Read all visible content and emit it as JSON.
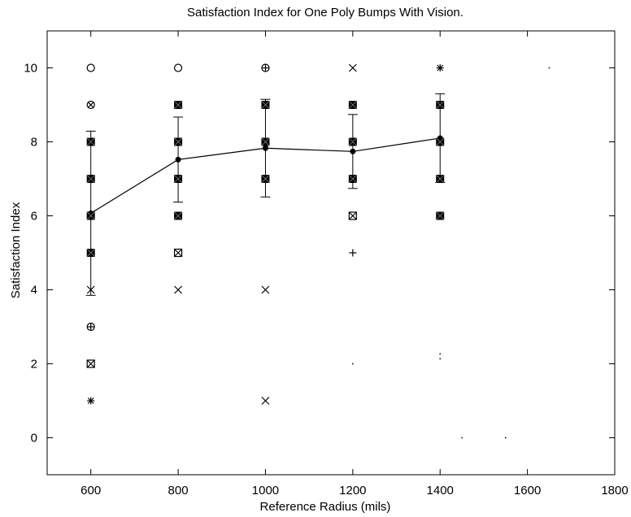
{
  "chart_data": {
    "type": "scatter",
    "title": "Satisfaction Index for One Poly Bumps With Vision.",
    "xlabel": "Reference Radius (mils)",
    "ylabel": "Satisfaction Index",
    "xlim": [
      500,
      1800
    ],
    "ylim": [
      -1,
      11
    ],
    "xticks": [
      600,
      800,
      1000,
      1200,
      1400,
      1600,
      1800
    ],
    "yticks": [
      0,
      2,
      4,
      6,
      8,
      10
    ],
    "grid": false,
    "series": [
      {
        "type": "scatter",
        "points": [
          {
            "x": 600,
            "y": 10,
            "marker": "circle"
          },
          {
            "x": 600,
            "y": 9,
            "marker": "circle-x"
          },
          {
            "x": 600,
            "y": 8,
            "marker": "filled-square"
          },
          {
            "x": 600,
            "y": 7,
            "marker": "filled-square"
          },
          {
            "x": 600,
            "y": 6,
            "marker": "filled-square"
          },
          {
            "x": 600,
            "y": 5,
            "marker": "filled-square"
          },
          {
            "x": 600,
            "y": 4,
            "marker": "x"
          },
          {
            "x": 600,
            "y": 3,
            "marker": "circle-plus"
          },
          {
            "x": 600,
            "y": 2,
            "marker": "square-x"
          },
          {
            "x": 600,
            "y": 1,
            "marker": "asterisk"
          },
          {
            "x": 800,
            "y": 10,
            "marker": "circle"
          },
          {
            "x": 800,
            "y": 9,
            "marker": "filled-square"
          },
          {
            "x": 800,
            "y": 8,
            "marker": "filled-square"
          },
          {
            "x": 800,
            "y": 7,
            "marker": "filled-square"
          },
          {
            "x": 800,
            "y": 6,
            "marker": "filled-square"
          },
          {
            "x": 800,
            "y": 5,
            "marker": "square-x"
          },
          {
            "x": 800,
            "y": 4,
            "marker": "x"
          },
          {
            "x": 1000,
            "y": 10,
            "marker": "circle-plus"
          },
          {
            "x": 1000,
            "y": 9,
            "marker": "filled-square"
          },
          {
            "x": 1000,
            "y": 8,
            "marker": "filled-square"
          },
          {
            "x": 1000,
            "y": 7,
            "marker": "filled-square"
          },
          {
            "x": 1000,
            "y": 4,
            "marker": "x"
          },
          {
            "x": 1000,
            "y": 1,
            "marker": "x"
          },
          {
            "x": 1200,
            "y": 10,
            "marker": "x"
          },
          {
            "x": 1200,
            "y": 9,
            "marker": "filled-square"
          },
          {
            "x": 1200,
            "y": 8,
            "marker": "filled-square"
          },
          {
            "x": 1200,
            "y": 7,
            "marker": "filled-square"
          },
          {
            "x": 1200,
            "y": 6,
            "marker": "square-x"
          },
          {
            "x": 1200,
            "y": 5,
            "marker": "plus"
          },
          {
            "x": 1200,
            "y": 2,
            "marker": "dot"
          },
          {
            "x": 1400,
            "y": 10,
            "marker": "asterisk"
          },
          {
            "x": 1400,
            "y": 9,
            "marker": "filled-square"
          },
          {
            "x": 1400,
            "y": 8,
            "marker": "filled-square"
          },
          {
            "x": 1400,
            "y": 7,
            "marker": "filled-square"
          },
          {
            "x": 1400,
            "y": 6,
            "marker": "filled-square"
          },
          {
            "x": 1400,
            "y": 2.2,
            "marker": "colon"
          },
          {
            "x": 1650,
            "y": 10,
            "marker": "dot"
          },
          {
            "x": 1450,
            "y": 0,
            "marker": "dot"
          },
          {
            "x": 1550,
            "y": 0,
            "marker": "dot"
          }
        ]
      },
      {
        "type": "line",
        "marker": "filled-circle",
        "x": [
          600,
          800,
          1000,
          1200,
          1400
        ],
        "y": [
          6.07,
          7.52,
          7.83,
          7.74,
          8.1
        ],
        "error": [
          2.22,
          1.15,
          1.32,
          1.0,
          1.2
        ]
      }
    ]
  }
}
